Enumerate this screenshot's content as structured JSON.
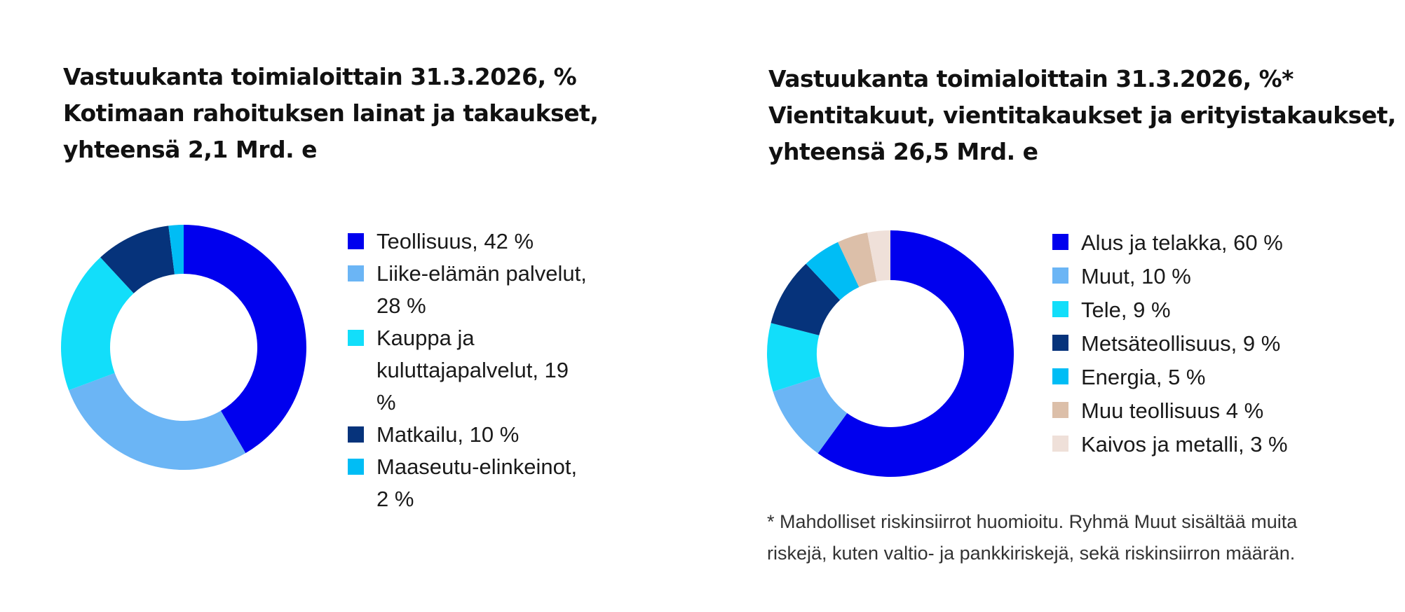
{
  "chart_data": [
    {
      "type": "donut",
      "title": "Vastuukanta toimialoittain 31.3.2026, %",
      "subtitle": [
        "Kotimaan rahoituksen lainat ja takaukset,",
        "yhteensä 2,1 Mrd. e"
      ],
      "categories": [
        "Teollisuus, 42 %",
        "Liike-elämän palvelut, 28 %",
        "Kauppa ja kuluttajapalvelut, 19 %",
        "Matkailu, 10 %",
        "Maaseutu-elinkeinot, 2 %"
      ],
      "values": [
        42,
        28,
        19,
        10,
        2
      ],
      "colors": [
        "#0000ee",
        "#6bb5f5",
        "#12defa",
        "#06337b",
        "#00bdf5"
      ]
    },
    {
      "type": "donut",
      "title": "Vastuukanta toimialoittain 31.3.2026, %*",
      "subtitle": [
        "Vientitakuut, vientitakaukset ja erityistakaukset,",
        "yhteensä 26,5 Mrd. e"
      ],
      "categories": [
        "Alus ja telakka, 60 %",
        "Muut, 10 %",
        "Tele, 9 %",
        "Metsäteollisuus, 9 %",
        "Energia, 5 %",
        "Muu teollisuus 4 %",
        "Kaivos ja metalli, 3 %"
      ],
      "values": [
        60,
        10,
        9,
        9,
        5,
        4,
        3
      ],
      "colors": [
        "#0000ee",
        "#6bb5f5",
        "#12defa",
        "#06337b",
        "#00bdf5",
        "#dcbfa9",
        "#efe0d9"
      ],
      "note": [
        "* Mahdolliset riskinsiirrot huomioitu. Ryhmä Muut sisältää muita",
        "riskejä, kuten valtio- ja pankkiriskejä, sekä riskinsiirron määrän."
      ]
    }
  ]
}
